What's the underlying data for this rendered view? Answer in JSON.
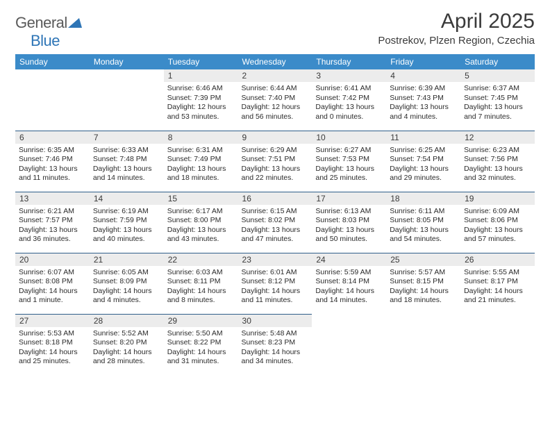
{
  "logo": {
    "text1": "General",
    "text2": "Blue"
  },
  "title": "April 2025",
  "location": "Postrekov, Plzen Region, Czechia",
  "colors": {
    "header_bg": "#3b8bc9",
    "header_text": "#ffffff",
    "row_border": "#2e5e8a",
    "daynum_bg": "#ececec",
    "logo_blue": "#2e75b6",
    "text": "#3a3a3a"
  },
  "weekdays": [
    "Sunday",
    "Monday",
    "Tuesday",
    "Wednesday",
    "Thursday",
    "Friday",
    "Saturday"
  ],
  "weeks": [
    [
      null,
      null,
      {
        "num": "1",
        "sunrise": "6:46 AM",
        "sunset": "7:39 PM",
        "daylight": "12 hours and 53 minutes."
      },
      {
        "num": "2",
        "sunrise": "6:44 AM",
        "sunset": "7:40 PM",
        "daylight": "12 hours and 56 minutes."
      },
      {
        "num": "3",
        "sunrise": "6:41 AM",
        "sunset": "7:42 PM",
        "daylight": "13 hours and 0 minutes."
      },
      {
        "num": "4",
        "sunrise": "6:39 AM",
        "sunset": "7:43 PM",
        "daylight": "13 hours and 4 minutes."
      },
      {
        "num": "5",
        "sunrise": "6:37 AM",
        "sunset": "7:45 PM",
        "daylight": "13 hours and 7 minutes."
      }
    ],
    [
      {
        "num": "6",
        "sunrise": "6:35 AM",
        "sunset": "7:46 PM",
        "daylight": "13 hours and 11 minutes."
      },
      {
        "num": "7",
        "sunrise": "6:33 AM",
        "sunset": "7:48 PM",
        "daylight": "13 hours and 14 minutes."
      },
      {
        "num": "8",
        "sunrise": "6:31 AM",
        "sunset": "7:49 PM",
        "daylight": "13 hours and 18 minutes."
      },
      {
        "num": "9",
        "sunrise": "6:29 AM",
        "sunset": "7:51 PM",
        "daylight": "13 hours and 22 minutes."
      },
      {
        "num": "10",
        "sunrise": "6:27 AM",
        "sunset": "7:53 PM",
        "daylight": "13 hours and 25 minutes."
      },
      {
        "num": "11",
        "sunrise": "6:25 AM",
        "sunset": "7:54 PM",
        "daylight": "13 hours and 29 minutes."
      },
      {
        "num": "12",
        "sunrise": "6:23 AM",
        "sunset": "7:56 PM",
        "daylight": "13 hours and 32 minutes."
      }
    ],
    [
      {
        "num": "13",
        "sunrise": "6:21 AM",
        "sunset": "7:57 PM",
        "daylight": "13 hours and 36 minutes."
      },
      {
        "num": "14",
        "sunrise": "6:19 AM",
        "sunset": "7:59 PM",
        "daylight": "13 hours and 40 minutes."
      },
      {
        "num": "15",
        "sunrise": "6:17 AM",
        "sunset": "8:00 PM",
        "daylight": "13 hours and 43 minutes."
      },
      {
        "num": "16",
        "sunrise": "6:15 AM",
        "sunset": "8:02 PM",
        "daylight": "13 hours and 47 minutes."
      },
      {
        "num": "17",
        "sunrise": "6:13 AM",
        "sunset": "8:03 PM",
        "daylight": "13 hours and 50 minutes."
      },
      {
        "num": "18",
        "sunrise": "6:11 AM",
        "sunset": "8:05 PM",
        "daylight": "13 hours and 54 minutes."
      },
      {
        "num": "19",
        "sunrise": "6:09 AM",
        "sunset": "8:06 PM",
        "daylight": "13 hours and 57 minutes."
      }
    ],
    [
      {
        "num": "20",
        "sunrise": "6:07 AM",
        "sunset": "8:08 PM",
        "daylight": "14 hours and 1 minute."
      },
      {
        "num": "21",
        "sunrise": "6:05 AM",
        "sunset": "8:09 PM",
        "daylight": "14 hours and 4 minutes."
      },
      {
        "num": "22",
        "sunrise": "6:03 AM",
        "sunset": "8:11 PM",
        "daylight": "14 hours and 8 minutes."
      },
      {
        "num": "23",
        "sunrise": "6:01 AM",
        "sunset": "8:12 PM",
        "daylight": "14 hours and 11 minutes."
      },
      {
        "num": "24",
        "sunrise": "5:59 AM",
        "sunset": "8:14 PM",
        "daylight": "14 hours and 14 minutes."
      },
      {
        "num": "25",
        "sunrise": "5:57 AM",
        "sunset": "8:15 PM",
        "daylight": "14 hours and 18 minutes."
      },
      {
        "num": "26",
        "sunrise": "5:55 AM",
        "sunset": "8:17 PM",
        "daylight": "14 hours and 21 minutes."
      }
    ],
    [
      {
        "num": "27",
        "sunrise": "5:53 AM",
        "sunset": "8:18 PM",
        "daylight": "14 hours and 25 minutes."
      },
      {
        "num": "28",
        "sunrise": "5:52 AM",
        "sunset": "8:20 PM",
        "daylight": "14 hours and 28 minutes."
      },
      {
        "num": "29",
        "sunrise": "5:50 AM",
        "sunset": "8:22 PM",
        "daylight": "14 hours and 31 minutes."
      },
      {
        "num": "30",
        "sunrise": "5:48 AM",
        "sunset": "8:23 PM",
        "daylight": "14 hours and 34 minutes."
      },
      null,
      null,
      null
    ]
  ]
}
